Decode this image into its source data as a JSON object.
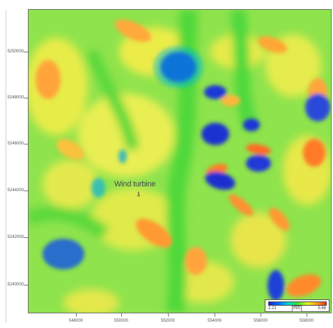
{
  "map": {
    "y_ticks": [
      "5250000",
      "5248000",
      "5246000",
      "5244000",
      "5242000",
      "5240000"
    ],
    "x_ticks": [
      "548000",
      "550000",
      "552000",
      "554000",
      "556000",
      "558000"
    ],
    "annotation": "Wind turbine",
    "marker_symbol": "⍋"
  },
  "legend": {
    "min": "2.21",
    "unit": "m/s",
    "max": "5.66",
    "colors": [
      "#1428d8",
      "#0070ff",
      "#00d8d0",
      "#38e030",
      "#f0f020",
      "#ffa020",
      "#f03010"
    ]
  }
}
